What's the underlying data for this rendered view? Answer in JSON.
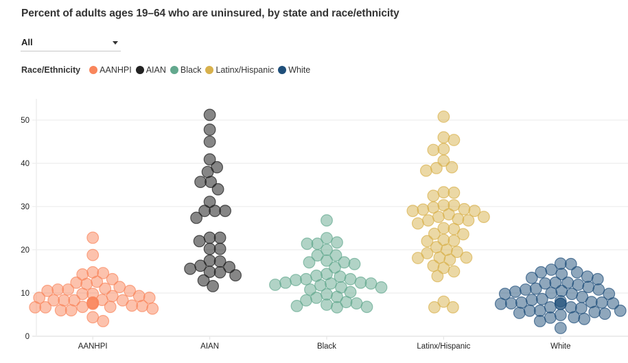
{
  "header": {
    "title": "Percent of adults ages 19–64 who are uninsured, by state and race/ethnicity"
  },
  "filter": {
    "selected": "All"
  },
  "legend": {
    "title": "Race/Ethnicity",
    "items": [
      {
        "label": "AANHPI",
        "color": "#F9865C"
      },
      {
        "label": "AIAN",
        "color": "#222222"
      },
      {
        "label": "Black",
        "color": "#63A88E"
      },
      {
        "label": "Latinx/Hispanic",
        "color": "#D8B14C"
      },
      {
        "label": "White",
        "color": "#1F4F7A"
      }
    ]
  },
  "chart_data": {
    "type": "scatter",
    "subtype": "beeswarm",
    "title": "Percent of adults ages 19–64 who are uninsured, by state and race/ethnicity",
    "xlabel": "",
    "ylabel": "",
    "ylim": [
      0,
      55
    ],
    "yticks": [
      0,
      10,
      20,
      30,
      40,
      50
    ],
    "grid": true,
    "legend_position": "top-left",
    "categories": [
      "AANHPI",
      "AIAN",
      "Black",
      "Latinx/Hispanic",
      "White"
    ],
    "series": [
      {
        "name": "AANHPI",
        "color": "#F9865C",
        "values": [
          22.8,
          18.8,
          14.8,
          14.6,
          14.3,
          13.2,
          12.6,
          12.4,
          12.1,
          11.4,
          11.0,
          10.8,
          10.8,
          10.5,
          10.5,
          9.8,
          9.8,
          9.3,
          9.3,
          8.9,
          8.9,
          8.4,
          8.3,
          8.3,
          8.3,
          8.3,
          7.8,
          7.8,
          7.6,
          7.5,
          7.1,
          7.0,
          6.8,
          6.8,
          6.7,
          6.7,
          6.4,
          6.0,
          6.0,
          4.4,
          3.5
        ]
      },
      {
        "name": "AIAN",
        "color": "#222222",
        "values": [
          51.2,
          47.8,
          45.0,
          40.9,
          39.1,
          38.0,
          35.7,
          35.7,
          34.0,
          31.1,
          29.0,
          29.0,
          29.0,
          27.4,
          22.8,
          22.8,
          22.0,
          20.2,
          20.2,
          17.5,
          17.3,
          16.3,
          16.0,
          15.6,
          14.9,
          14.8,
          14.1,
          12.9,
          11.6
        ]
      },
      {
        "name": "Black",
        "color": "#63A88E",
        "values": [
          26.8,
          22.7,
          21.7,
          21.4,
          21.4,
          20.0,
          18.7,
          18.7,
          17.5,
          17.1,
          17.1,
          16.7,
          15.9,
          14.4,
          14.0,
          13.8,
          13.2,
          13.2,
          13.0,
          12.4,
          12.4,
          12.2,
          12.2,
          11.9,
          11.8,
          11.3,
          11.3,
          10.8,
          10.2,
          9.7,
          9.1,
          8.9,
          8.3,
          7.9,
          7.6,
          7.3,
          7.0,
          6.8,
          6.7
        ]
      },
      {
        "name": "Latinx/Hispanic",
        "color": "#D8B14C",
        "values": [
          50.8,
          46.0,
          45.4,
          43.3,
          43.1,
          40.6,
          39.1,
          38.9,
          38.3,
          33.3,
          33.2,
          32.5,
          30.3,
          30.3,
          29.8,
          29.4,
          29.3,
          29.0,
          29.0,
          28.2,
          27.6,
          27.6,
          27.1,
          26.8,
          26.8,
          26.1,
          25.0,
          24.8,
          23.7,
          23.6,
          22.3,
          22.1,
          22.0,
          20.6,
          20.0,
          19.5,
          19.2,
          18.2,
          18.2,
          18.1,
          17.7,
          16.3,
          15.8,
          15.0,
          13.9,
          8.0,
          6.7,
          6.7
        ]
      },
      {
        "name": "White",
        "color": "#1F4F7A",
        "values": [
          16.8,
          16.7,
          15.4,
          14.8,
          14.8,
          14.4,
          13.8,
          13.5,
          13.2,
          12.4,
          12.4,
          12.2,
          11.9,
          11.4,
          11.0,
          10.8,
          10.8,
          10.5,
          10.3,
          10.0,
          9.8,
          9.8,
          9.8,
          9.1,
          8.6,
          8.4,
          8.1,
          7.9,
          7.8,
          7.8,
          7.6,
          7.6,
          7.5,
          7.5,
          7.5,
          6.7,
          6.7,
          6.5,
          5.9,
          5.9,
          5.9,
          5.6,
          5.4,
          5.2,
          4.9,
          4.4,
          4.3,
          4.0,
          3.5,
          1.9
        ]
      }
    ]
  }
}
